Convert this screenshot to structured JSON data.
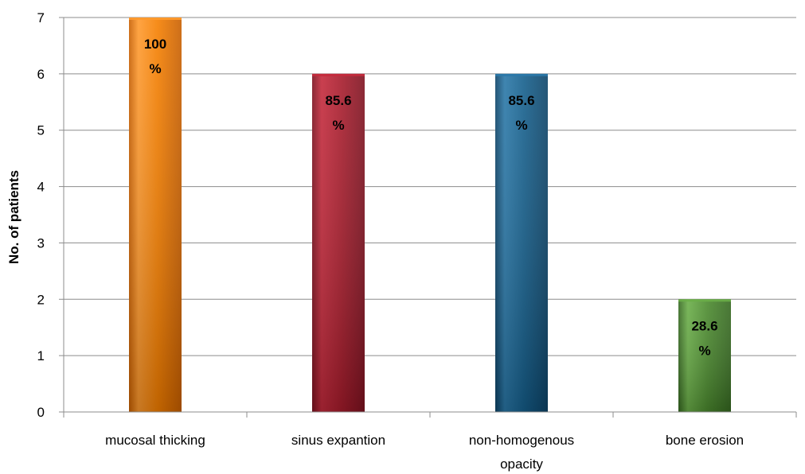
{
  "chart_data": {
    "type": "bar",
    "title": "",
    "xlabel": "",
    "ylabel": "No. of patients",
    "ylim": [
      0,
      7
    ],
    "yticks": [
      0,
      1,
      2,
      3,
      4,
      5,
      6,
      7
    ],
    "grid": true,
    "legend": "none",
    "categories": [
      [
        "mucosal thicking"
      ],
      [
        "sinus expantion"
      ],
      [
        "non-homogenous",
        "opacity"
      ],
      [
        "bone erosion"
      ]
    ],
    "values": [
      7,
      6,
      6,
      2
    ],
    "data_labels": [
      [
        "100",
        "%"
      ],
      [
        "85.6",
        "%"
      ],
      [
        "85.6",
        "%"
      ],
      [
        "28.6",
        "%"
      ]
    ],
    "colors": [
      {
        "light": "#ff9a2e",
        "base": "#f57f00",
        "dark": "#c85f00"
      },
      {
        "light": "#c42a3c",
        "base": "#a81c2c",
        "dark": "#7e1220"
      },
      {
        "light": "#2a78a8",
        "base": "#155f8c",
        "dark": "#0d4468"
      },
      {
        "light": "#6aae48",
        "base": "#4b8a2e",
        "dark": "#356820"
      }
    ]
  }
}
